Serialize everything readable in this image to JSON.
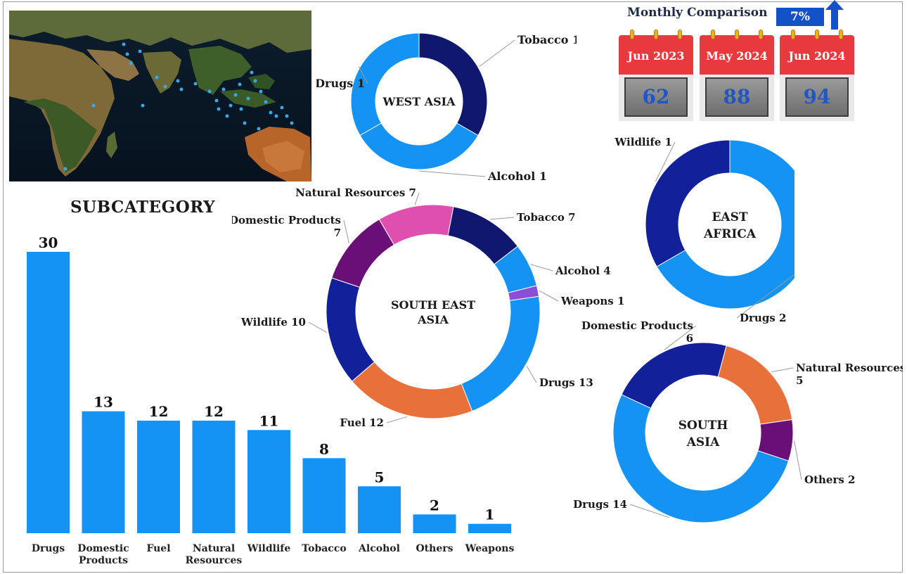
{
  "monthly_comparison": {
    "title": "Monthly Comparison",
    "change": "7%",
    "months": [
      {
        "label": "Jun 2023",
        "value": "62"
      },
      {
        "label": "May 2024",
        "value": "88"
      },
      {
        "label": "Jun 2024",
        "value": "94"
      }
    ]
  },
  "colors": {
    "bar": "#1493f5",
    "drugs": "#1493f5",
    "alcohol": "#1493f5",
    "tobacco": "#10176e",
    "wildlife": "#12219a",
    "domestic_products": "#6a0e78",
    "natural_resources": "#df4fb0",
    "fuel": "#e8703a",
    "weapons": "#8a4fd6",
    "others": "#6a0e78"
  },
  "chart_data": [
    {
      "type": "bar",
      "title": "SUBCATEGORY",
      "categories": [
        "Drugs",
        "Domestic Products",
        "Fuel",
        "Natural Resources",
        "Wildlife",
        "Tobacco",
        "Alcohol",
        "Others",
        "Weapons"
      ],
      "values": [
        30,
        13,
        12,
        12,
        11,
        8,
        5,
        2,
        1
      ],
      "ylim": [
        0,
        30
      ],
      "grid": false
    },
    {
      "type": "pie",
      "title": "WEST ASIA",
      "labels": [
        "Tobacco",
        "Alcohol",
        "Drugs"
      ],
      "values": [
        1,
        1,
        1
      ],
      "colors": [
        "#10176e",
        "#1493f5",
        "#1493f5"
      ]
    },
    {
      "type": "pie",
      "title": "SOUTH EAST ASIA",
      "labels": [
        "Tobacco",
        "Alcohol",
        "Weapons",
        "Drugs",
        "Fuel",
        "Wildlife",
        "Domestic Products",
        "Natural Resources"
      ],
      "values": [
        7,
        4,
        1,
        13,
        12,
        10,
        7,
        7
      ],
      "colors": [
        "#10176e",
        "#1493f5",
        "#8a4fd6",
        "#1493f5",
        "#e8703a",
        "#12219a",
        "#6a0e78",
        "#df4fb0"
      ]
    },
    {
      "type": "pie",
      "title": "EAST AFRICA",
      "labels": [
        "Drugs",
        "Wildlife"
      ],
      "values": [
        2,
        1
      ],
      "colors": [
        "#1493f5",
        "#12219a"
      ]
    },
    {
      "type": "pie",
      "title": "SOUTH ASIA",
      "labels": [
        "Natural Resources",
        "Others",
        "Drugs",
        "Domestic Products"
      ],
      "values": [
        5,
        2,
        14,
        6
      ],
      "colors": [
        "#e8703a",
        "#6a0e78",
        "#1493f5",
        "#12219a"
      ]
    }
  ]
}
